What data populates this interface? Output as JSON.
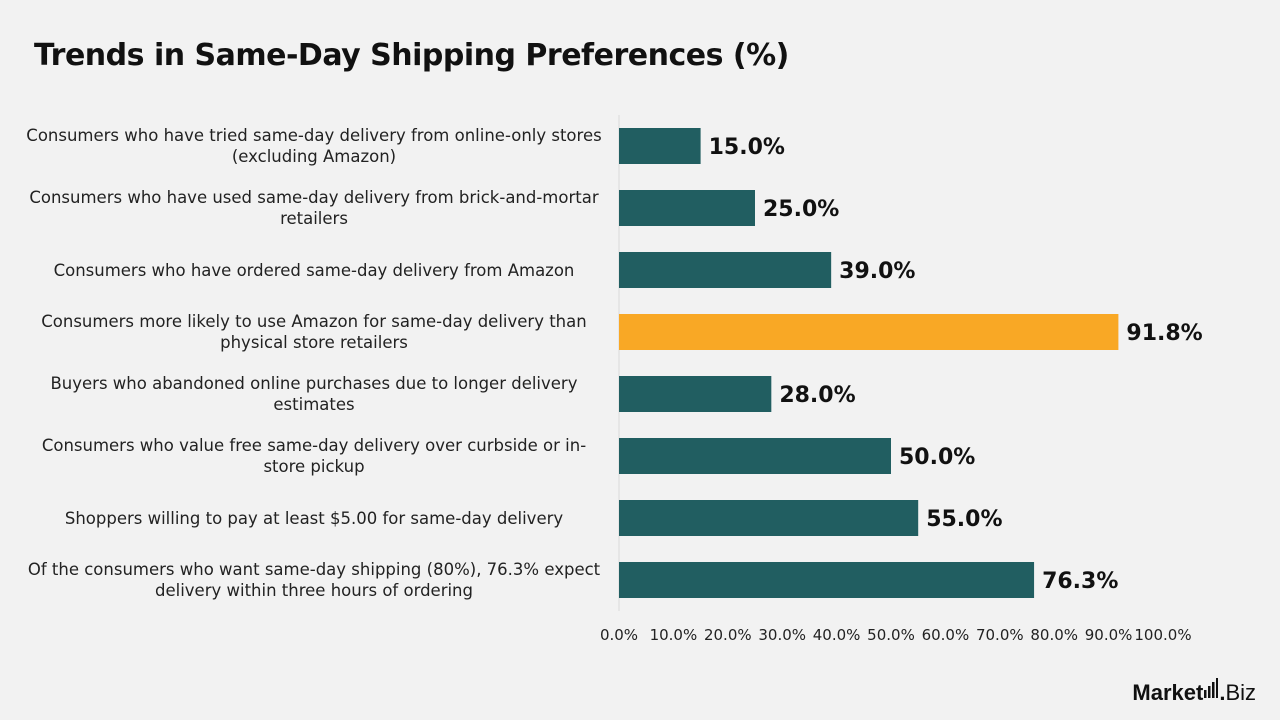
{
  "page": {
    "title": "Trends in Same-Day Shipping Preferences (%)",
    "brand": {
      "bold": "Market",
      "dot": ".",
      "light": "Biz"
    }
  },
  "colors": {
    "bar": "#215e61",
    "highlight": "#f9a825",
    "background": "#f2f2f2",
    "axis": "#d9d9d9",
    "text": "#111111"
  },
  "chart_data": {
    "type": "bar",
    "orientation": "horizontal",
    "title": "Trends in Same-Day Shipping Preferences (%)",
    "xlabel": "",
    "ylabel": "",
    "xlim": [
      0,
      100
    ],
    "x_ticks": [
      "0.0%",
      "10.0%",
      "20.0%",
      "30.0%",
      "40.0%",
      "50.0%",
      "60.0%",
      "70.0%",
      "80.0%",
      "90.0%",
      "100.0%"
    ],
    "grid": false,
    "categories": [
      "Consumers who have tried same-day delivery from online-only stores (excluding Amazon)",
      "Consumers who have used same-day delivery from brick-and-mortar retailers",
      "Consumers who have ordered same-day delivery from Amazon",
      "Consumers more likely to use Amazon for same-day delivery than physical store retailers",
      "Buyers who abandoned online purchases due to longer delivery estimates",
      "Consumers who value free same-day delivery over curbside or in-store pickup",
      "Shoppers willing to pay at least $5.00 for same-day delivery",
      "Of the consumers who want same-day shipping (80%), 76.3% expect delivery within three hours of ordering"
    ],
    "values": [
      15.0,
      25.0,
      39.0,
      91.8,
      28.0,
      50.0,
      55.0,
      76.3
    ],
    "value_labels": [
      "15.0%",
      "25.0%",
      "39.0%",
      "91.8%",
      "28.0%",
      "50.0%",
      "55.0%",
      "76.3%"
    ],
    "highlight_index": 3
  }
}
